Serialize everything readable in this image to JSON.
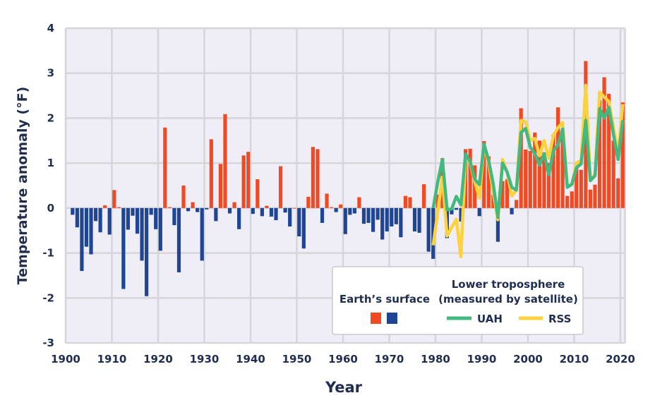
{
  "chart_data": {
    "type": "bar",
    "xlabel": "Year",
    "ylabel": "Temperature anomaly (°F)",
    "xlim": [
      1900,
      2021
    ],
    "ylim": [
      -3,
      4
    ],
    "grid": true,
    "legend_placement": "bottom-right",
    "x_ticks": [
      "1900",
      "1910",
      "1920",
      "1930",
      "1940",
      "1950",
      "1960",
      "1970",
      "1980",
      "1990",
      "2000",
      "2010",
      "2020"
    ],
    "y_ticks": [
      "4",
      "3",
      "2",
      "1",
      "0",
      "-1",
      "-2",
      "-3"
    ],
    "colors": {
      "surface_positive": "#ef4a23",
      "surface_negative": "#1f4694",
      "uah": "#43b97f",
      "rss": "#fcd23e",
      "plot_bg": "#efedf6",
      "grid": "#d6d5da"
    },
    "legend": {
      "surface_label": "Earth’s surface",
      "troposphere_title_1": "Lower troposphere",
      "troposphere_title_2": "(measured by satellite)",
      "uah_label": "UAH",
      "rss_label": "RSS"
    },
    "surface": {
      "name": "Earth’s surface",
      "start_year": 1901,
      "values": [
        -0.15,
        -0.43,
        -1.4,
        -0.86,
        -1.03,
        -0.29,
        -0.54,
        0.06,
        -0.59,
        0.4,
        0.02,
        -1.8,
        -0.48,
        -0.17,
        -0.57,
        -1.17,
        -1.96,
        -0.15,
        -0.47,
        -0.95,
        1.79,
        0.02,
        -0.38,
        -1.43,
        0.5,
        -0.07,
        0.13,
        -0.09,
        -1.17,
        -0.03,
        1.53,
        -0.29,
        0.98,
        2.09,
        -0.12,
        0.13,
        -0.47,
        1.17,
        1.25,
        -0.13,
        0.64,
        -0.18,
        0.05,
        -0.19,
        -0.27,
        0.93,
        -0.1,
        -0.41,
        0.0,
        -0.63,
        -0.9,
        0.25,
        1.36,
        1.31,
        -0.33,
        0.32,
        0.02,
        -0.09,
        0.08,
        -0.58,
        -0.15,
        -0.12,
        0.24,
        -0.35,
        -0.33,
        -0.53,
        -0.26,
        -0.7,
        -0.52,
        -0.41,
        -0.36,
        -0.65,
        0.27,
        0.24,
        -0.52,
        -0.55,
        0.53,
        -0.97,
        -1.13,
        0.3,
        1.11,
        -0.67,
        -0.14,
        -0.04,
        -0.3,
        1.31,
        1.32,
        0.95,
        -0.18,
        1.49,
        1.15,
        0.3,
        -0.75,
        0.6,
        0.64,
        -0.14,
        0.18,
        2.22,
        1.3,
        1.27,
        1.68,
        1.5,
        1.24,
        1.0,
        1.63,
        2.24,
        1.7,
        0.27,
        0.37,
        1.0,
        0.85,
        3.27,
        0.41,
        0.52,
        2.4,
        2.91,
        2.54,
        1.5,
        0.66,
        2.35
      ]
    },
    "uah": {
      "name": "UAH",
      "start_year": 1979,
      "values": [
        0.0,
        0.59,
        1.08,
        -0.04,
        -0.02,
        0.26,
        0.07,
        1.2,
        1.03,
        0.64,
        0.52,
        1.42,
        1.06,
        0.53,
        -0.21,
        1.0,
        0.8,
        0.46,
        0.4,
        1.68,
        1.77,
        1.35,
        1.21,
        0.95,
        1.21,
        0.74,
        1.27,
        1.4,
        1.76,
        0.46,
        0.53,
        0.9,
        0.98,
        1.95,
        0.61,
        0.72,
        2.21,
        2.0,
        2.24,
        1.63,
        1.08,
        1.95
      ]
    },
    "rss": {
      "name": "RSS",
      "start_year": 1979,
      "values": [
        -0.83,
        -0.07,
        0.69,
        -0.62,
        -0.43,
        -0.25,
        -1.08,
        1.14,
        1.0,
        0.59,
        0.22,
        1.4,
        1.0,
        0.35,
        -0.26,
        1.08,
        0.8,
        0.27,
        0.4,
        1.95,
        1.92,
        1.5,
        1.55,
        1.16,
        1.5,
        1.11,
        1.61,
        1.79,
        1.9,
        0.48,
        0.53,
        1.0,
        1.06,
        2.73,
        0.64,
        0.74,
        2.58,
        2.47,
        2.37,
        1.79,
        1.21,
        2.31
      ]
    }
  }
}
